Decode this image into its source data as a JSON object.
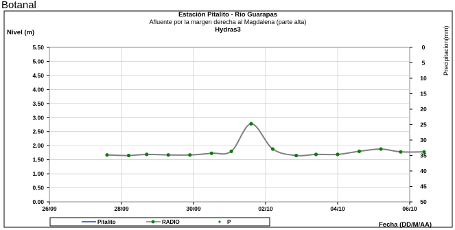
{
  "page": {
    "cropped_heading": "Botanal"
  },
  "chart_data": {
    "type": "line",
    "title": "Estación Pitalito  - Río Guarapas",
    "subtitle": "Afluente por la margen derecha al Magdalena (parte alta)",
    "subtitle2": "Hydras3",
    "ylabel": "Nivel (m)",
    "y2label": "Precipitacion(mm)",
    "xlabel": "Fecha (DD/M/AA)",
    "ylim": [
      0,
      5.5
    ],
    "y_ticks": [
      "0.00",
      "0.50",
      "1.00",
      "1.50",
      "2.00",
      "2.50",
      "3.00",
      "3.50",
      "4.00",
      "4.50",
      "5.00",
      "5.50"
    ],
    "y2lim": [
      0,
      50
    ],
    "y2_ticks": [
      "0",
      "5",
      "10",
      "15",
      "20",
      "25",
      "30",
      "35",
      "40",
      "45",
      "50"
    ],
    "y2_inverted": true,
    "x_ticks": [
      "26/09",
      "28/09",
      "30/09",
      "02/10",
      "04/10",
      "06/10"
    ],
    "grid": true,
    "legend_position": "bottom-left",
    "series": [
      {
        "name": "Pitalito",
        "color": "#1f3fbf",
        "style": "line",
        "x": [],
        "y": []
      },
      {
        "name": "RADIO",
        "color": "#808080",
        "marker_color": "#0f7a0f",
        "style": "line-marker",
        "x": [
          1.6,
          2.2,
          2.7,
          3.3,
          3.9,
          4.5,
          5.05,
          5.6,
          6.2,
          6.85,
          7.4,
          8.0,
          8.6,
          9.2,
          9.75,
          10.4
        ],
        "y": [
          1.67,
          1.65,
          1.69,
          1.67,
          1.67,
          1.73,
          1.8,
          2.78,
          1.88,
          1.65,
          1.69,
          1.69,
          1.8,
          1.88,
          1.78,
          1.78
        ]
      },
      {
        "name": "P",
        "color": "#0f7a0f",
        "style": "marker",
        "x": [],
        "y": []
      }
    ],
    "x_unit_note_days_from_26_09": true
  }
}
